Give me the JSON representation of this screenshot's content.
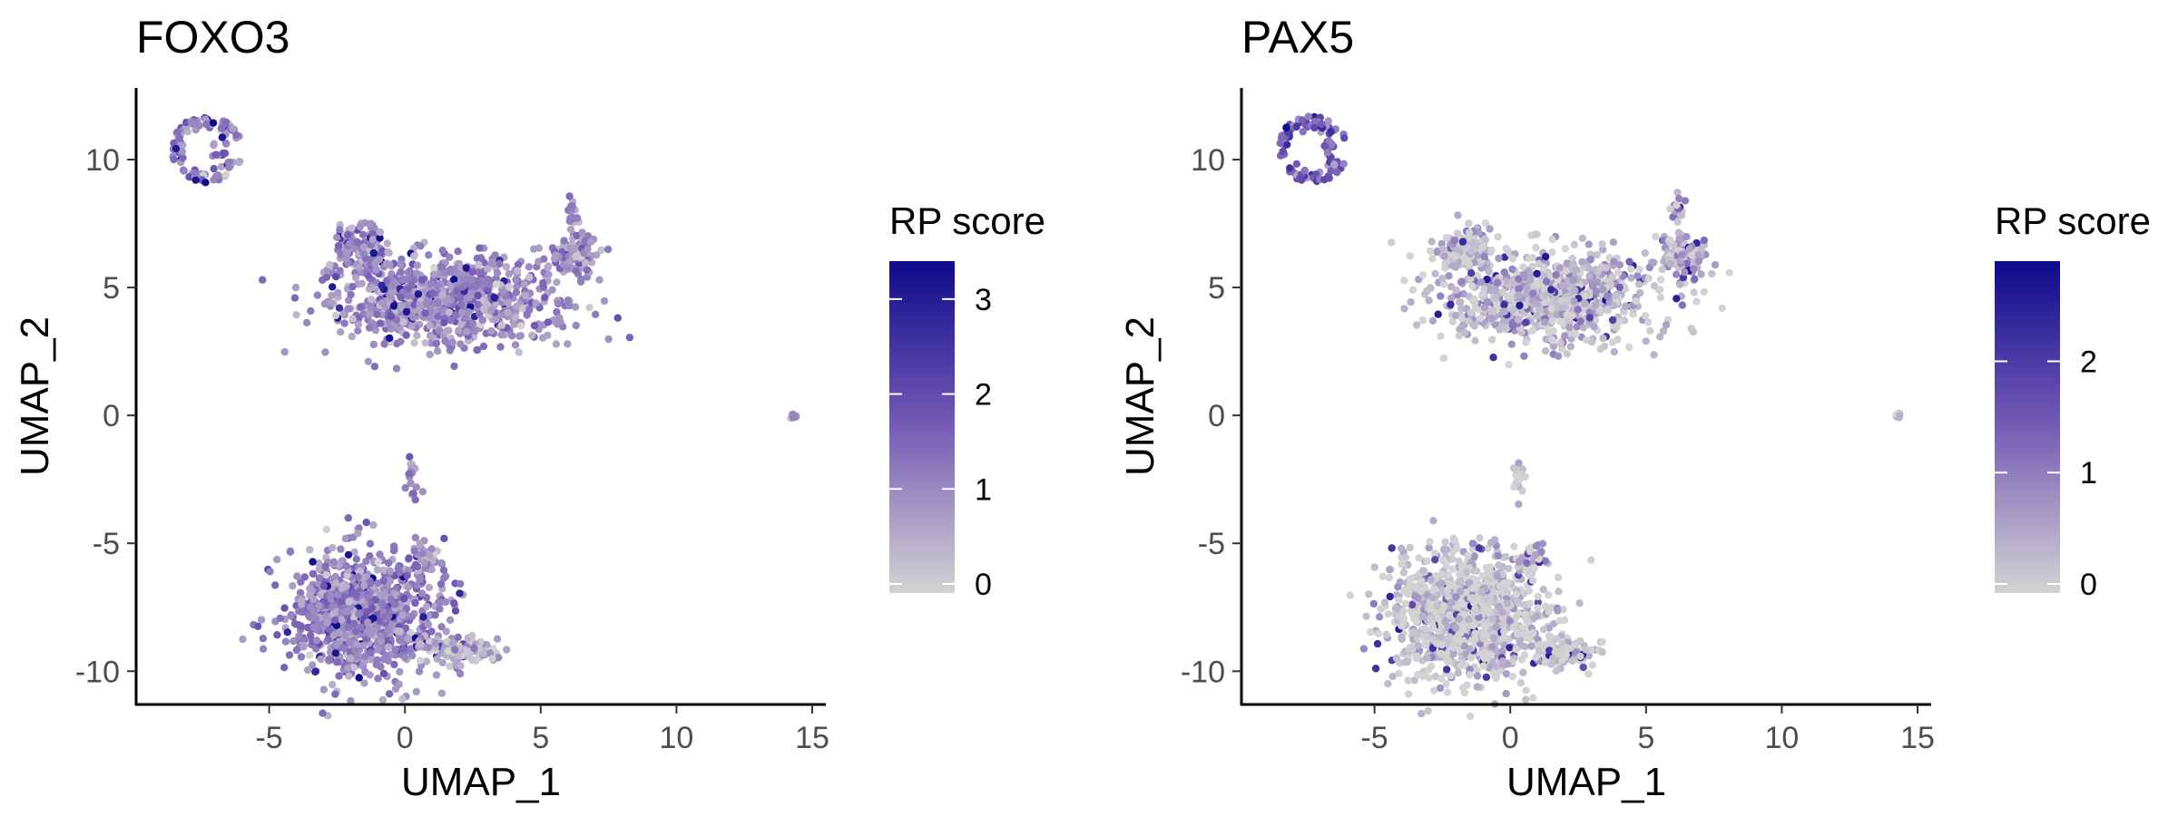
{
  "chart_data": [
    {
      "type": "scatter",
      "title": "FOXO3",
      "xlabel": "UMAP_1",
      "ylabel": "UMAP_2",
      "xlim": [
        -9.9,
        15.5
      ],
      "ylim": [
        -11.3,
        12.8
      ],
      "xticks": [
        -5,
        0,
        5,
        10,
        15
      ],
      "yticks": [
        -10,
        -5,
        0,
        5,
        10
      ],
      "xtick_labels": [
        "-5",
        "0",
        "5",
        "10",
        "15"
      ],
      "ytick_labels": [
        "-10",
        "-5",
        "0",
        "5",
        "10"
      ],
      "grid": false,
      "legend": {
        "title": "RP score",
        "position": "right",
        "range": [
          0,
          3.4
        ],
        "ticks": [
          0,
          1,
          2,
          3
        ],
        "tick_labels": [
          "0",
          "1",
          "2",
          "3"
        ],
        "low_color": "#d3d3d3",
        "high_color": "#0d0a8c"
      },
      "clusters": [
        {
          "name": "top-left ring",
          "center": [
            -7.3,
            10.4
          ],
          "spread": [
            1.3,
            1.3
          ],
          "shape": "ring",
          "n": 110,
          "mean_score": 1.1
        },
        {
          "name": "upper-middle main",
          "center": [
            1.5,
            4.6
          ],
          "spread": [
            4.0,
            1.8
          ],
          "shape": "blob",
          "n": 900,
          "mean_score": 1.0
        },
        {
          "name": "upper-middle top lobe",
          "center": [
            -1.6,
            6.6
          ],
          "spread": [
            1.0,
            0.9
          ],
          "shape": "blob",
          "n": 120,
          "mean_score": 1.0
        },
        {
          "name": "upper-right arm",
          "center": [
            6.3,
            6.3
          ],
          "spread": [
            0.9,
            0.8
          ],
          "shape": "blob",
          "n": 120,
          "mean_score": 0.9
        },
        {
          "name": "upper-right spike",
          "center": [
            6.2,
            8.0
          ],
          "spread": [
            0.25,
            0.6
          ],
          "shape": "blob",
          "n": 18,
          "mean_score": 0.9
        },
        {
          "name": "bottom main",
          "center": [
            -1.6,
            -7.8
          ],
          "spread": [
            2.8,
            2.4
          ],
          "shape": "blob",
          "n": 1000,
          "mean_score": 1.1
        },
        {
          "name": "bottom right arm",
          "center": [
            2.0,
            -9.2
          ],
          "spread": [
            1.2,
            0.5
          ],
          "shape": "blob",
          "n": 120,
          "mean_score": 0.6
        },
        {
          "name": "bottom upper arm",
          "center": [
            0.8,
            -5.6
          ],
          "spread": [
            0.6,
            0.6
          ],
          "shape": "blob",
          "n": 35,
          "mean_score": 0.9
        },
        {
          "name": "stalk",
          "center": [
            0.3,
            -2.6
          ],
          "spread": [
            0.25,
            0.8
          ],
          "shape": "blob",
          "n": 18,
          "mean_score": 1.1
        },
        {
          "name": "outlier",
          "center": [
            14.3,
            0.0
          ],
          "spread": [
            0.1,
            0.1
          ],
          "shape": "blob",
          "n": 8,
          "mean_score": 0.6
        }
      ]
    },
    {
      "type": "scatter",
      "title": "PAX5",
      "xlabel": "UMAP_1",
      "ylabel": "UMAP_2",
      "xlim": [
        -9.9,
        15.5
      ],
      "ylim": [
        -11.3,
        12.8
      ],
      "xticks": [
        -5,
        0,
        5,
        10,
        15
      ],
      "yticks": [
        -10,
        -5,
        0,
        5,
        10
      ],
      "xtick_labels": [
        "-5",
        "0",
        "5",
        "10",
        "15"
      ],
      "ytick_labels": [
        "-10",
        "-5",
        "0",
        "5",
        "10"
      ],
      "grid": false,
      "legend": {
        "title": "RP score",
        "position": "right",
        "range": [
          0,
          2.9
        ],
        "ticks": [
          0,
          1,
          2
        ],
        "tick_labels": [
          "0",
          "1",
          "2"
        ],
        "low_color": "#d3d3d3",
        "high_color": "#0d0a8c"
      },
      "clusters": [
        {
          "name": "top-left ring",
          "center": [
            -7.3,
            10.4
          ],
          "spread": [
            1.3,
            1.3
          ],
          "shape": "ring",
          "n": 110,
          "mean_score": 1.5
        },
        {
          "name": "upper-middle main",
          "center": [
            1.5,
            4.6
          ],
          "spread": [
            4.0,
            1.8
          ],
          "shape": "blob",
          "n": 900,
          "mean_score": 0.3
        },
        {
          "name": "upper-middle top lobe",
          "center": [
            -1.6,
            6.6
          ],
          "spread": [
            1.0,
            0.9
          ],
          "shape": "blob",
          "n": 120,
          "mean_score": 0.25
        },
        {
          "name": "upper-right arm",
          "center": [
            6.3,
            6.3
          ],
          "spread": [
            0.9,
            0.8
          ],
          "shape": "blob",
          "n": 120,
          "mean_score": 0.5
        },
        {
          "name": "upper-right spike",
          "center": [
            6.2,
            8.0
          ],
          "spread": [
            0.25,
            0.6
          ],
          "shape": "blob",
          "n": 18,
          "mean_score": 0.5
        },
        {
          "name": "bottom main",
          "center": [
            -1.6,
            -7.8
          ],
          "spread": [
            2.8,
            2.4
          ],
          "shape": "blob",
          "n": 1000,
          "mean_score": 0.1
        },
        {
          "name": "bottom right arm",
          "center": [
            2.0,
            -9.2
          ],
          "spread": [
            1.2,
            0.5
          ],
          "shape": "blob",
          "n": 120,
          "mean_score": 0.05
        },
        {
          "name": "bottom upper arm",
          "center": [
            0.8,
            -5.6
          ],
          "spread": [
            0.6,
            0.6
          ],
          "shape": "blob",
          "n": 35,
          "mean_score": 0.2
        },
        {
          "name": "stalk",
          "center": [
            0.3,
            -2.6
          ],
          "spread": [
            0.25,
            0.8
          ],
          "shape": "blob",
          "n": 18,
          "mean_score": 0.3
        },
        {
          "name": "outlier",
          "center": [
            14.3,
            0.0
          ],
          "spread": [
            0.1,
            0.1
          ],
          "shape": "blob",
          "n": 8,
          "mean_score": 0.1
        }
      ]
    }
  ]
}
